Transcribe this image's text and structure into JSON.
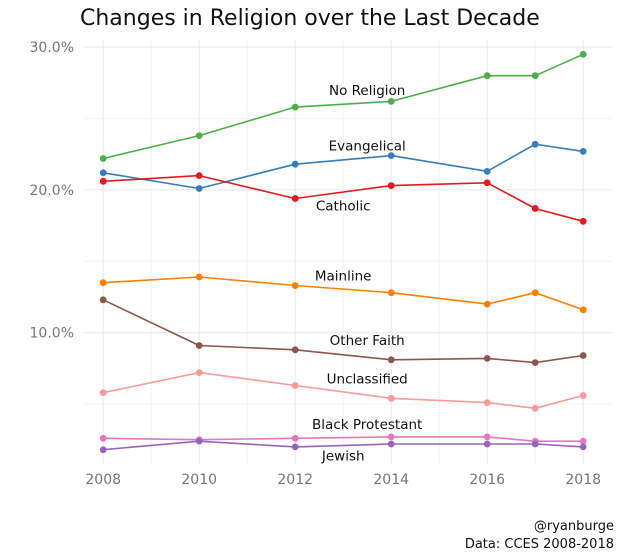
{
  "title": "Changes in Religion over the Last Decade",
  "caption": {
    "handle": "@ryanburge",
    "source": "Data: CCES 2008-2018"
  },
  "chart_data": {
    "type": "line",
    "title": "Changes in Religion over the Last Decade",
    "xlabel": "",
    "ylabel": "",
    "x": [
      2008,
      2010,
      2012,
      2014,
      2016,
      2017,
      2018
    ],
    "xlim": [
      2007.6,
      2018.6
    ],
    "ylim": [
      0.8,
      30.5
    ],
    "x_ticks": [
      2008,
      2010,
      2012,
      2014,
      2016,
      2018
    ],
    "y_ticks": [
      {
        "value": 10,
        "label": "10.0%"
      },
      {
        "value": 20,
        "label": "20.0%"
      },
      {
        "value": 30,
        "label": "30.0%"
      }
    ],
    "grid": true,
    "legend": "none (direct labels)",
    "series": [
      {
        "name": "No Religion",
        "color": "#4daf4a",
        "values": [
          22.2,
          23.8,
          25.8,
          26.2,
          28.0,
          28.0,
          29.5
        ],
        "label_x": 2013.5,
        "label_y": 27.0
      },
      {
        "name": "Evangelical",
        "color": "#377eb8",
        "values": [
          21.2,
          20.1,
          21.8,
          22.4,
          21.3,
          23.2,
          22.7
        ],
        "label_x": 2013.5,
        "label_y": 23.1
      },
      {
        "name": "Catholic",
        "color": "#e41a1c",
        "values": [
          20.6,
          21.0,
          19.4,
          20.3,
          20.5,
          18.7,
          17.8
        ],
        "label_x": 2013.0,
        "label_y": 18.9
      },
      {
        "name": "Mainline",
        "color": "#ff7f00",
        "values": [
          13.5,
          13.9,
          13.3,
          12.8,
          12.0,
          12.8,
          11.6
        ],
        "label_x": 2013.0,
        "label_y": 14.0
      },
      {
        "name": "Other Faith",
        "color": "#8c564b",
        "values": [
          12.3,
          9.1,
          8.8,
          8.1,
          8.2,
          7.9,
          8.4
        ],
        "label_x": 2013.5,
        "label_y": 9.5
      },
      {
        "name": "Unclassified",
        "color": "#fb9a99",
        "values": [
          5.8,
          7.2,
          6.3,
          5.4,
          5.1,
          4.7,
          5.6
        ],
        "label_x": 2013.5,
        "label_y": 6.8
      },
      {
        "name": "Black Protestant",
        "color": "#e377c2",
        "values": [
          2.6,
          2.5,
          2.6,
          2.7,
          2.7,
          2.4,
          2.4
        ],
        "label_x": 2013.5,
        "label_y": 3.6
      },
      {
        "name": "Jewish",
        "color": "#9467bd",
        "values": [
          1.8,
          2.4,
          2.0,
          2.2,
          2.2,
          2.2,
          2.0
        ],
        "label_x": 2013.0,
        "label_y": 1.4
      }
    ]
  }
}
